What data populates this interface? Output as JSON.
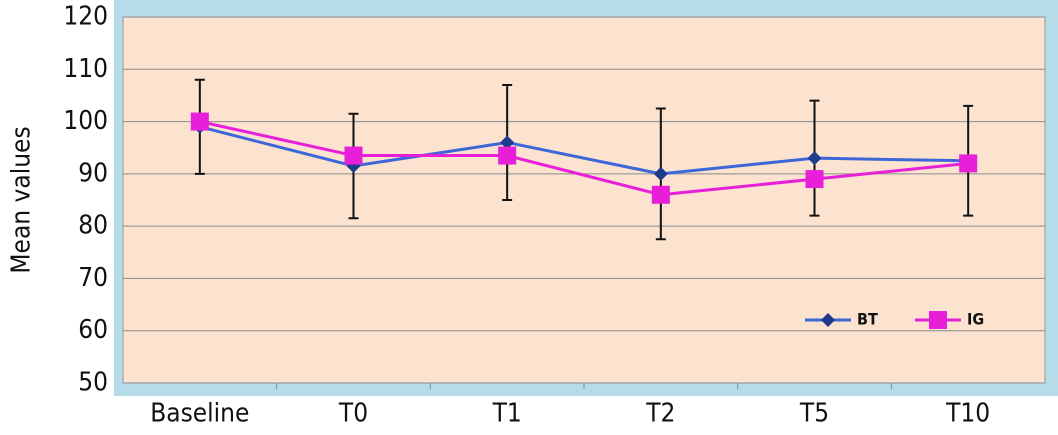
{
  "chart_data": {
    "type": "line",
    "y_label": "Mean values",
    "categories": [
      "Baseline",
      "T0",
      "T1",
      "T2",
      "T5",
      "T10"
    ],
    "series": [
      {
        "name": "BT",
        "color": "#3d67d8",
        "marker": "diamond",
        "values": [
          99,
          91.5,
          96,
          90,
          93,
          92.5
        ],
        "errors": [
          9,
          10,
          11,
          12.5,
          11,
          10.5
        ]
      },
      {
        "name": "IG",
        "color": "#e81fd8",
        "marker": "square",
        "values": [
          100,
          93.5,
          93.5,
          86,
          89,
          92
        ]
      }
    ],
    "ylim": [
      50,
      120
    ],
    "yticks": [
      50,
      60,
      70,
      80,
      90,
      100,
      110,
      120
    ],
    "grid": true,
    "legend": "lower right"
  }
}
